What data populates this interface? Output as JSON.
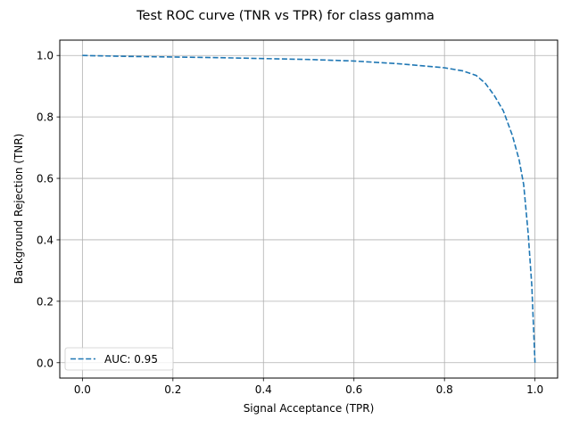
{
  "chart_data": {
    "type": "line",
    "title": "Test ROC curve (TNR vs TPR) for class gamma",
    "xlabel": "Signal Acceptance (TPR)",
    "ylabel": "Background Rejection (TNR)",
    "xlim": [
      -0.05,
      1.05
    ],
    "ylim": [
      -0.05,
      1.05
    ],
    "xticks": [
      "0.0",
      "0.2",
      "0.4",
      "0.6",
      "0.8",
      "1.0"
    ],
    "yticks": [
      "0.0",
      "0.2",
      "0.4",
      "0.6",
      "0.8",
      "1.0"
    ],
    "grid": true,
    "legend_position": "lower-left",
    "series": [
      {
        "name": "AUC: 0.95",
        "color": "#1f77b4",
        "linestyle": "dashed",
        "x": [
          0.0,
          0.1,
          0.2,
          0.3,
          0.4,
          0.5,
          0.6,
          0.7,
          0.8,
          0.84,
          0.87,
          0.89,
          0.91,
          0.93,
          0.95,
          0.965,
          0.975,
          0.985,
          0.993,
          1.0
        ],
        "y": [
          1.0,
          0.997,
          0.995,
          0.993,
          0.99,
          0.987,
          0.982,
          0.973,
          0.96,
          0.95,
          0.935,
          0.91,
          0.87,
          0.82,
          0.74,
          0.66,
          0.58,
          0.42,
          0.25,
          0.0
        ]
      }
    ]
  }
}
